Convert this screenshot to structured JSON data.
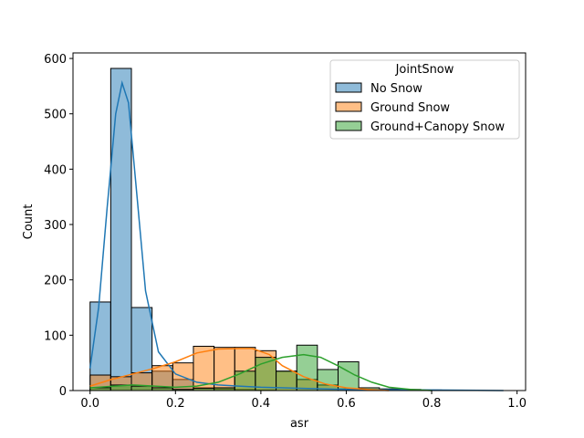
{
  "chart_data": {
    "type": "histogram",
    "xlabel": "asr",
    "ylabel": "Count",
    "xlim": [
      -0.04,
      1.02
    ],
    "ylim": [
      0,
      610
    ],
    "xticks": [
      "0.0",
      "0.2",
      "0.4",
      "0.6",
      "0.8",
      "1.0"
    ],
    "yticks": [
      "0",
      "100",
      "200",
      "300",
      "400",
      "500",
      "600"
    ],
    "bin_edges": [
      0.0,
      0.0484,
      0.0968,
      0.1452,
      0.1936,
      0.242,
      0.2904,
      0.3388,
      0.3872,
      0.4356,
      0.484,
      0.5324,
      0.5808,
      0.6292,
      0.6776,
      0.726,
      0.7744,
      0.8228,
      0.8712,
      0.9196,
      0.968
    ],
    "legend": {
      "title": "JointSnow",
      "placement": "upper right"
    },
    "series": [
      {
        "name": "No Snow",
        "color": "#1f77b4",
        "counts": [
          160,
          582,
          150,
          35,
          20,
          5,
          3,
          2,
          1,
          0,
          0,
          0,
          0,
          0,
          0,
          0,
          0,
          0,
          0,
          0
        ],
        "kde": [
          [
            0.0,
            40
          ],
          [
            0.02,
            150
          ],
          [
            0.04,
            330
          ],
          [
            0.06,
            500
          ],
          [
            0.075,
            556
          ],
          [
            0.09,
            520
          ],
          [
            0.11,
            350
          ],
          [
            0.13,
            180
          ],
          [
            0.16,
            70
          ],
          [
            0.2,
            30
          ],
          [
            0.25,
            15
          ],
          [
            0.3,
            10
          ],
          [
            0.4,
            6
          ],
          [
            0.5,
            4
          ],
          [
            0.6,
            2
          ],
          [
            0.8,
            1
          ],
          [
            0.968,
            0
          ]
        ]
      },
      {
        "name": "Ground Snow",
        "color": "#ff7f0e",
        "counts": [
          28,
          25,
          32,
          45,
          50,
          80,
          78,
          78,
          72,
          35,
          20,
          10,
          3,
          0,
          0,
          0,
          0,
          0,
          0,
          0
        ],
        "kde": [
          [
            0.0,
            8
          ],
          [
            0.05,
            20
          ],
          [
            0.1,
            30
          ],
          [
            0.15,
            40
          ],
          [
            0.2,
            52
          ],
          [
            0.25,
            68
          ],
          [
            0.3,
            75
          ],
          [
            0.35,
            76
          ],
          [
            0.38,
            76
          ],
          [
            0.42,
            65
          ],
          [
            0.45,
            45
          ],
          [
            0.5,
            25
          ],
          [
            0.55,
            12
          ],
          [
            0.6,
            5
          ],
          [
            0.65,
            2
          ],
          [
            0.7,
            0
          ]
        ]
      },
      {
        "name": "Ground+Canopy Snow",
        "color": "#2ca02c",
        "counts": [
          5,
          10,
          8,
          5,
          2,
          4,
          5,
          35,
          60,
          35,
          82,
          38,
          52,
          5,
          3,
          2,
          1,
          0,
          0,
          0
        ],
        "kde": [
          [
            0.0,
            5
          ],
          [
            0.1,
            10
          ],
          [
            0.2,
            6
          ],
          [
            0.25,
            8
          ],
          [
            0.3,
            15
          ],
          [
            0.35,
            30
          ],
          [
            0.4,
            48
          ],
          [
            0.45,
            60
          ],
          [
            0.5,
            65
          ],
          [
            0.54,
            60
          ],
          [
            0.58,
            45
          ],
          [
            0.62,
            28
          ],
          [
            0.66,
            15
          ],
          [
            0.7,
            6
          ],
          [
            0.75,
            2
          ],
          [
            0.8,
            0
          ]
        ]
      }
    ]
  }
}
